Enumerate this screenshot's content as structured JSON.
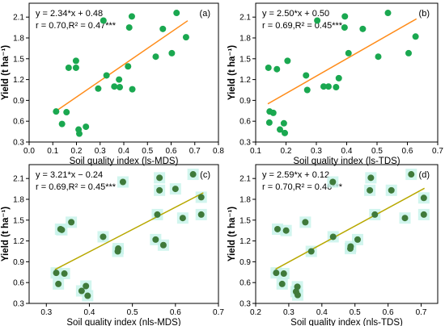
{
  "figure": {
    "colors": {
      "point_green": "#1aa850",
      "point_dark": "#3f7a3a",
      "patch": "#c6f3ea",
      "line_orange": "#ff8c1a",
      "line_olive": "#b8a800",
      "axis": "#000000"
    }
  },
  "chart_data": [
    {
      "type": "scatter",
      "panel_label": "(a)",
      "equation": "y = 2.34*x + 0.48",
      "stats": "r = 0.70,R² = 0.47***",
      "xlabel": "Soil quality index (ls-MDS)",
      "ylabel": "Yield (t ha⁻¹)",
      "xlim": [
        0.0,
        0.8
      ],
      "ylim": [
        0.3,
        2.3
      ],
      "xticks": [
        "0.0",
        "0.1",
        "0.2",
        "0.3",
        "0.4",
        "0.5",
        "0.6",
        "0.7",
        "0.8"
      ],
      "yticks": [
        "0.3",
        "0.6",
        "0.9",
        "1.2",
        "1.5",
        "1.8",
        "2.1"
      ],
      "ytick_values": [
        0.3,
        0.6,
        0.9,
        1.2,
        1.5,
        1.8,
        2.1
      ],
      "marker": "solid",
      "line_color": "#ff8c1a",
      "fit": {
        "slope": 2.34,
        "intercept": 0.48,
        "x_range": [
          0.11,
          0.67
        ]
      },
      "points": [
        [
          0.114,
          0.74
        ],
        [
          0.139,
          0.56
        ],
        [
          0.158,
          0.73
        ],
        [
          0.167,
          1.37
        ],
        [
          0.198,
          1.47
        ],
        [
          0.198,
          1.37
        ],
        [
          0.209,
          0.48
        ],
        [
          0.212,
          0.42
        ],
        [
          0.24,
          0.52
        ],
        [
          0.292,
          1.07
        ],
        [
          0.314,
          2.05
        ],
        [
          0.327,
          1.26
        ],
        [
          0.36,
          1.1
        ],
        [
          0.38,
          1.2
        ],
        [
          0.383,
          1.09
        ],
        [
          0.418,
          1.39
        ],
        [
          0.423,
          1.95
        ],
        [
          0.434,
          2.11
        ],
        [
          0.436,
          1.06
        ],
        [
          0.535,
          1.53
        ],
        [
          0.565,
          1.93
        ],
        [
          0.603,
          1.58
        ],
        [
          0.623,
          2.16
        ],
        [
          0.663,
          1.81
        ]
      ]
    },
    {
      "type": "scatter",
      "panel_label": "(b)",
      "equation": "y = 2.50*x + 0.50",
      "stats": "r = 0.69,R² = 0.45***",
      "xlabel": "Soil quality index (ls-TDS)",
      "ylabel": "Yield (t ha⁻¹)",
      "xlim": [
        0.1,
        0.7
      ],
      "ylim": [
        0.3,
        2.3
      ],
      "xticks": [
        "0.1",
        "0.2",
        "0.3",
        "0.4",
        "0.5",
        "0.6",
        "0.7"
      ],
      "yticks": [
        "0.3",
        "0.6",
        "0.9",
        "1.2",
        "1.5",
        "1.8",
        "2.1"
      ],
      "ytick_values": [
        0.3,
        0.6,
        0.9,
        1.2,
        1.5,
        1.8,
        2.1
      ],
      "marker": "solid",
      "line_color": "#ff8c1a",
      "fit": {
        "slope": 2.5,
        "intercept": 0.5,
        "x_range": [
          0.14,
          0.63
        ]
      },
      "points": [
        [
          0.142,
          1.37
        ],
        [
          0.146,
          0.74
        ],
        [
          0.145,
          0.58
        ],
        [
          0.158,
          0.72
        ],
        [
          0.17,
          1.35
        ],
        [
          0.18,
          0.48
        ],
        [
          0.193,
          0.57
        ],
        [
          0.196,
          0.43
        ],
        [
          0.205,
          1.47
        ],
        [
          0.266,
          1.26
        ],
        [
          0.27,
          1.05
        ],
        [
          0.303,
          2.05
        ],
        [
          0.324,
          1.1
        ],
        [
          0.34,
          1.1
        ],
        [
          0.365,
          1.09
        ],
        [
          0.374,
          1.22
        ],
        [
          0.393,
          1.95
        ],
        [
          0.394,
          2.11
        ],
        [
          0.406,
          1.58
        ],
        [
          0.453,
          1.93
        ],
        [
          0.504,
          1.53
        ],
        [
          0.536,
          2.16
        ],
        [
          0.604,
          1.58
        ],
        [
          0.627,
          1.82
        ]
      ]
    },
    {
      "type": "scatter",
      "panel_label": "(c)",
      "equation": "y = 3.21*x − 0.24",
      "stats": "r = 0.69,R² = 0.45***",
      "xlabel": "Soil quality index (nls-MDS)",
      "ylabel": "Yield (t ha⁻¹)",
      "xlim": [
        0.26,
        0.7
      ],
      "ylim": [
        0.3,
        2.3
      ],
      "xticks": [
        "0.3",
        "0.4",
        "0.5",
        "0.6",
        "0.7"
      ],
      "xtick_values": [
        0.3,
        0.4,
        0.5,
        0.6,
        0.7
      ],
      "yticks": [
        "0.3",
        "0.6",
        "0.9",
        "1.2",
        "1.5",
        "1.8",
        "2.1"
      ],
      "ytick_values": [
        0.3,
        0.6,
        0.9,
        1.2,
        1.5,
        1.8,
        2.1
      ],
      "marker": "patched",
      "line_color": "#b8a800",
      "fit": {
        "slope": 3.21,
        "intercept": -0.24,
        "x_range": [
          0.32,
          0.665
        ]
      },
      "points": [
        [
          0.323,
          0.74
        ],
        [
          0.328,
          0.58
        ],
        [
          0.333,
          1.37
        ],
        [
          0.336,
          1.36
        ],
        [
          0.342,
          0.73
        ],
        [
          0.358,
          1.47
        ],
        [
          0.382,
          0.48
        ],
        [
          0.392,
          0.55
        ],
        [
          0.396,
          0.41
        ],
        [
          0.432,
          1.26
        ],
        [
          0.466,
          1.05
        ],
        [
          0.467,
          1.09
        ],
        [
          0.478,
          2.05
        ],
        [
          0.554,
          1.22
        ],
        [
          0.558,
          1.58
        ],
        [
          0.563,
          1.93
        ],
        [
          0.563,
          2.11
        ],
        [
          0.572,
          1.14
        ],
        [
          0.6,
          1.95
        ],
        [
          0.617,
          1.53
        ],
        [
          0.641,
          2.16
        ],
        [
          0.66,
          1.83
        ],
        [
          0.66,
          1.58
        ]
      ]
    },
    {
      "type": "scatter",
      "panel_label": "(d)",
      "equation": "y = 2.59*x + 0.12",
      "stats": "r = 0.70,R² = 0.46***",
      "xlabel": "Soil quality index (nls-TDS)",
      "ylabel": "Yield (t ha⁻¹)",
      "xlim": [
        0.2,
        0.75
      ],
      "ylim": [
        0.3,
        2.3
      ],
      "xticks": [
        "0.2",
        "0.3",
        "0.4",
        "0.5",
        "0.6",
        "0.7"
      ],
      "xtick_values": [
        0.2,
        0.3,
        0.4,
        0.5,
        0.6,
        0.7
      ],
      "yticks": [
        "0.3",
        "0.6",
        "0.9",
        "1.2",
        "1.5",
        "1.8",
        "2.1"
      ],
      "ytick_values": [
        0.3,
        0.6,
        0.9,
        1.2,
        1.5,
        1.8,
        2.1
      ],
      "marker": "patched",
      "line_color": "#b8a800",
      "fit": {
        "slope": 2.59,
        "intercept": 0.12,
        "x_range": [
          0.26,
          0.71
        ]
      },
      "points": [
        [
          0.262,
          0.74
        ],
        [
          0.266,
          1.37
        ],
        [
          0.28,
          0.58
        ],
        [
          0.285,
          0.73
        ],
        [
          0.292,
          1.35
        ],
        [
          0.322,
          0.47
        ],
        [
          0.326,
          0.54
        ],
        [
          0.327,
          0.42
        ],
        [
          0.35,
          1.47
        ],
        [
          0.368,
          1.05
        ],
        [
          0.433,
          2.05
        ],
        [
          0.434,
          1.26
        ],
        [
          0.486,
          1.09
        ],
        [
          0.487,
          1.12
        ],
        [
          0.508,
          1.22
        ],
        [
          0.545,
          1.93
        ],
        [
          0.548,
          2.11
        ],
        [
          0.56,
          1.58
        ],
        [
          0.61,
          1.93
        ],
        [
          0.651,
          1.53
        ],
        [
          0.67,
          2.16
        ],
        [
          0.708,
          1.82
        ],
        [
          0.708,
          1.58
        ]
      ]
    }
  ]
}
